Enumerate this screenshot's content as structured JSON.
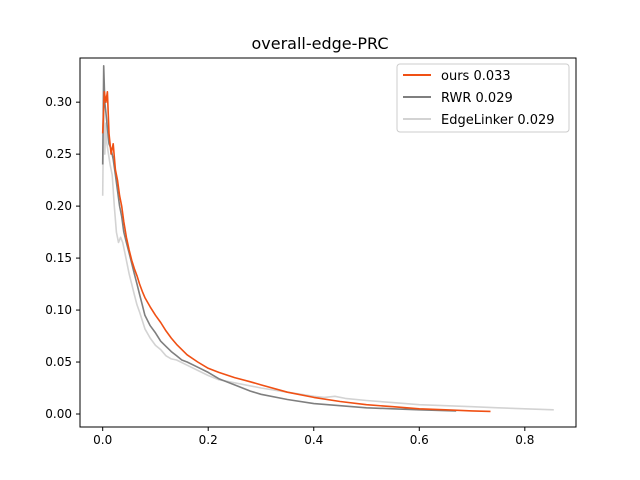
{
  "chart_data": {
    "type": "line",
    "title": "overall-edge-PRC",
    "xlabel": "",
    "ylabel": "",
    "xlim": [
      -0.043,
      0.897
    ],
    "ylim": [
      -0.0125,
      0.3425
    ],
    "xticks": [
      0.0,
      0.2,
      0.4,
      0.6,
      0.8
    ],
    "xtick_labels": [
      "0.0",
      "0.2",
      "0.4",
      "0.6",
      "0.8"
    ],
    "yticks": [
      0.0,
      0.05,
      0.1,
      0.15,
      0.2,
      0.25,
      0.3
    ],
    "ytick_labels": [
      "0.00",
      "0.05",
      "0.10",
      "0.15",
      "0.20",
      "0.25",
      "0.30"
    ],
    "grid": false,
    "legend_position": "top-right",
    "series": [
      {
        "name": "ours 0.033",
        "color": "#f05014",
        "x": [
          0.0,
          0.003,
          0.006,
          0.009,
          0.012,
          0.016,
          0.02,
          0.024,
          0.028,
          0.032,
          0.036,
          0.04,
          0.045,
          0.05,
          0.055,
          0.06,
          0.065,
          0.07,
          0.075,
          0.08,
          0.09,
          0.1,
          0.11,
          0.12,
          0.13,
          0.14,
          0.15,
          0.16,
          0.18,
          0.2,
          0.22,
          0.25,
          0.28,
          0.3,
          0.35,
          0.4,
          0.45,
          0.5,
          0.55,
          0.6,
          0.65,
          0.7,
          0.735
        ],
        "y": [
          0.27,
          0.31,
          0.3,
          0.31,
          0.27,
          0.25,
          0.26,
          0.235,
          0.225,
          0.21,
          0.2,
          0.185,
          0.17,
          0.158,
          0.148,
          0.14,
          0.133,
          0.125,
          0.118,
          0.112,
          0.103,
          0.095,
          0.088,
          0.08,
          0.073,
          0.067,
          0.062,
          0.057,
          0.05,
          0.044,
          0.04,
          0.035,
          0.031,
          0.028,
          0.021,
          0.016,
          0.012,
          0.009,
          0.007,
          0.005,
          0.004,
          0.003,
          0.0025
        ]
      },
      {
        "name": "RWR 0.029",
        "color": "#7f7f7f",
        "x": [
          0.0,
          0.002,
          0.004,
          0.006,
          0.009,
          0.012,
          0.016,
          0.02,
          0.024,
          0.028,
          0.032,
          0.036,
          0.04,
          0.045,
          0.05,
          0.055,
          0.06,
          0.065,
          0.07,
          0.075,
          0.08,
          0.09,
          0.1,
          0.11,
          0.12,
          0.13,
          0.14,
          0.15,
          0.16,
          0.18,
          0.2,
          0.22,
          0.25,
          0.28,
          0.3,
          0.35,
          0.4,
          0.45,
          0.5,
          0.55,
          0.6,
          0.67
        ],
        "y": [
          0.24,
          0.335,
          0.3,
          0.29,
          0.275,
          0.26,
          0.255,
          0.245,
          0.23,
          0.215,
          0.2,
          0.19,
          0.175,
          0.165,
          0.155,
          0.145,
          0.135,
          0.125,
          0.115,
          0.105,
          0.095,
          0.085,
          0.078,
          0.07,
          0.065,
          0.06,
          0.056,
          0.052,
          0.05,
          0.045,
          0.04,
          0.034,
          0.028,
          0.022,
          0.019,
          0.014,
          0.01,
          0.008,
          0.006,
          0.005,
          0.004,
          0.003
        ]
      },
      {
        "name": "EdgeLinker 0.029",
        "color": "#d3d3d3",
        "x": [
          0.0,
          0.002,
          0.004,
          0.006,
          0.008,
          0.011,
          0.014,
          0.018,
          0.022,
          0.026,
          0.03,
          0.034,
          0.038,
          0.042,
          0.046,
          0.05,
          0.055,
          0.06,
          0.065,
          0.07,
          0.075,
          0.08,
          0.09,
          0.1,
          0.11,
          0.12,
          0.13,
          0.14,
          0.16,
          0.18,
          0.2,
          0.22,
          0.25,
          0.3,
          0.35,
          0.4,
          0.42,
          0.44,
          0.46,
          0.5,
          0.55,
          0.6,
          0.65,
          0.7,
          0.75,
          0.8,
          0.855
        ],
        "y": [
          0.21,
          0.3,
          0.25,
          0.28,
          0.26,
          0.25,
          0.24,
          0.23,
          0.2,
          0.175,
          0.165,
          0.17,
          0.165,
          0.155,
          0.145,
          0.135,
          0.125,
          0.115,
          0.105,
          0.098,
          0.09,
          0.082,
          0.073,
          0.066,
          0.062,
          0.056,
          0.053,
          0.052,
          0.047,
          0.042,
          0.037,
          0.033,
          0.03,
          0.025,
          0.021,
          0.017,
          0.016,
          0.017,
          0.015,
          0.013,
          0.011,
          0.009,
          0.008,
          0.007,
          0.006,
          0.005,
          0.004
        ]
      }
    ]
  }
}
